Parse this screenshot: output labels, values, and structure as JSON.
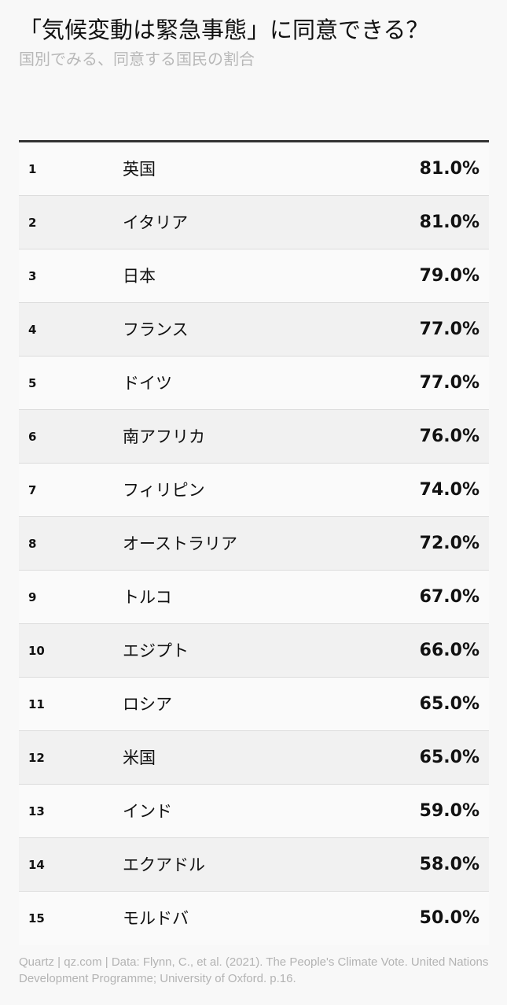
{
  "header": {
    "title": "「気候変動は緊急事態」に同意できる？",
    "subtitle": "国別でみる、同意する国民の割合"
  },
  "table": {
    "rows": [
      {
        "rank": "1",
        "country": "英国",
        "value": "81.0%"
      },
      {
        "rank": "2",
        "country": "イタリア",
        "value": "81.0%"
      },
      {
        "rank": "3",
        "country": "日本",
        "value": "79.0%"
      },
      {
        "rank": "4",
        "country": "フランス",
        "value": "77.0%"
      },
      {
        "rank": "5",
        "country": "ドイツ",
        "value": "77.0%"
      },
      {
        "rank": "6",
        "country": "南アフリカ",
        "value": "76.0%"
      },
      {
        "rank": "7",
        "country": "フィリピン",
        "value": "74.0%"
      },
      {
        "rank": "8",
        "country": "オーストラリア",
        "value": "72.0%"
      },
      {
        "rank": "9",
        "country": "トルコ",
        "value": "67.0%"
      },
      {
        "rank": "10",
        "country": "エジプト",
        "value": "66.0%"
      },
      {
        "rank": "11",
        "country": "ロシア",
        "value": "65.0%"
      },
      {
        "rank": "12",
        "country": "米国",
        "value": "65.0%"
      },
      {
        "rank": "13",
        "country": "インド",
        "value": "59.0%"
      },
      {
        "rank": "14",
        "country": "エクアドル",
        "value": "58.0%"
      },
      {
        "rank": "15",
        "country": "モルドバ",
        "value": "50.0%"
      }
    ]
  },
  "footer": {
    "source": "Quartz | qz.com | Data: Flynn, C., et al. (2021). The People's Climate Vote. United Nations Development Programme; University of Oxford. p.16."
  },
  "chart_data": {
    "type": "table",
    "title": "「気候変動は緊急事態」に同意できる？",
    "subtitle": "国別でみる、同意する国民の割合",
    "categories": [
      "英国",
      "イタリア",
      "日本",
      "フランス",
      "ドイツ",
      "南アフリカ",
      "フィリピン",
      "オーストラリア",
      "トルコ",
      "エジプト",
      "ロシア",
      "米国",
      "インド",
      "エクアドル",
      "モルドバ"
    ],
    "values": [
      81.0,
      81.0,
      79.0,
      77.0,
      77.0,
      76.0,
      74.0,
      72.0,
      67.0,
      66.0,
      65.0,
      65.0,
      59.0,
      58.0,
      50.0
    ],
    "unit": "%"
  },
  "colors": {
    "background": "#f8f8f8",
    "text": "#111111",
    "muted": "#b8b8b8",
    "rule": "#333333",
    "row_alt": "#f1f1f1"
  }
}
